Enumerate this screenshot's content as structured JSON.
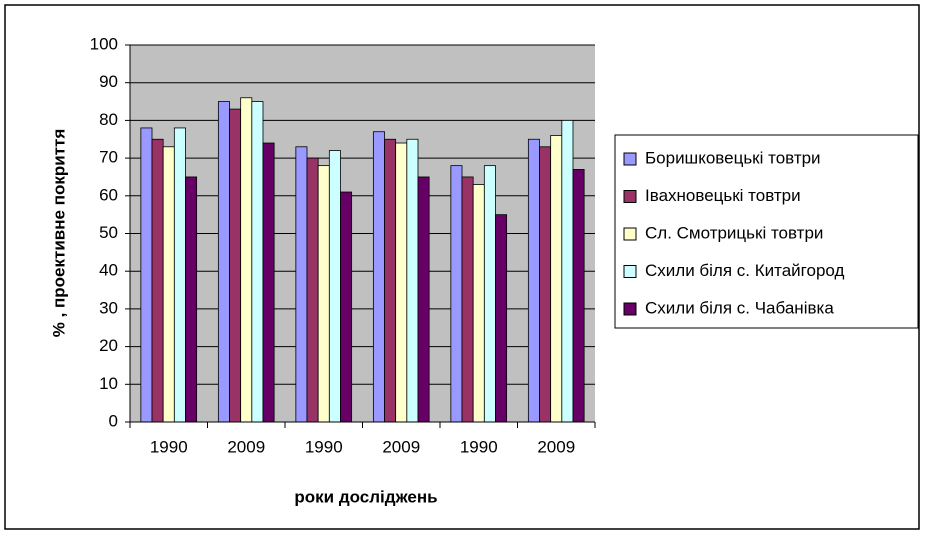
{
  "chart_data": {
    "type": "bar",
    "y_label": "% , проективне покриття",
    "x_label": "роки досліджень",
    "categories": [
      "1990",
      "2009",
      "1990",
      "2009",
      "1990",
      "2009"
    ],
    "series": [
      {
        "name": "Боришковецькі товтри",
        "color": "#9999ff",
        "values": [
          78,
          85,
          73,
          77,
          68,
          75
        ]
      },
      {
        "name": "Івахновецькі товтри",
        "color": "#993366",
        "values": [
          75,
          83,
          70,
          75,
          65,
          73
        ]
      },
      {
        "name": "Сл. Смотрицькі товтри",
        "color": "#ffffcc",
        "values": [
          73,
          86,
          68,
          74,
          63,
          76
        ]
      },
      {
        "name": "Схили біля с. Китайгород",
        "color": "#ccffff",
        "values": [
          78,
          85,
          72,
          75,
          68,
          80
        ]
      },
      {
        "name": "Схили біля с. Чабанівка",
        "color": "#660066",
        "values": [
          65,
          74,
          61,
          65,
          55,
          67
        ]
      }
    ],
    "ylim": [
      0,
      100
    ],
    "yticks": [
      0,
      10,
      20,
      30,
      40,
      50,
      60,
      70,
      80,
      90,
      100
    ],
    "grid": true,
    "legend": "right"
  }
}
